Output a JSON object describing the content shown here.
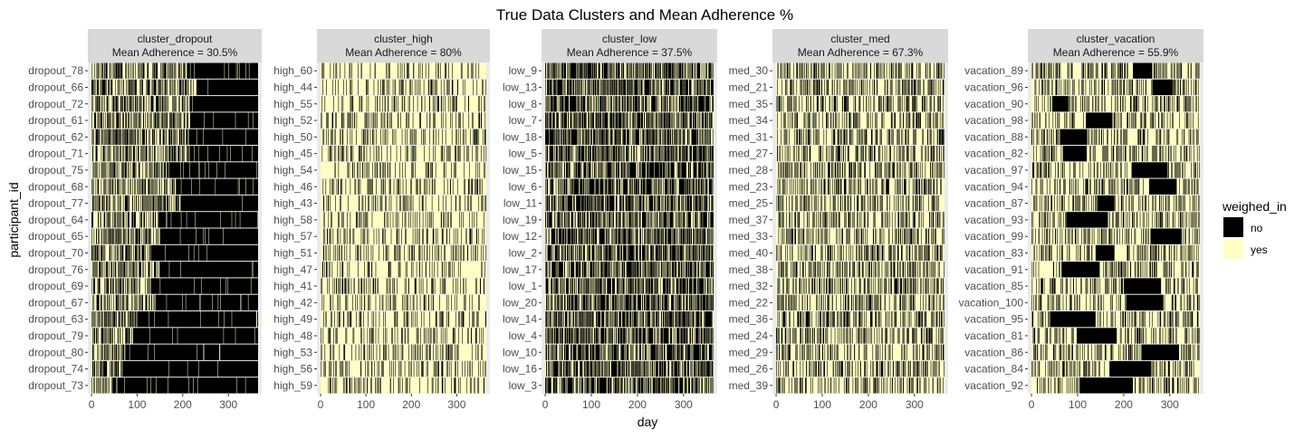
{
  "chart_data": {
    "type": "heatmap",
    "title": "True Data Clusters and Mean Adherence %",
    "xlabel": "day",
    "ylabel": "participant_id",
    "x_ticks": [
      0,
      100,
      200,
      300
    ],
    "xlim": [
      0,
      365
    ],
    "legend": {
      "title": "weighed_in",
      "position": "right",
      "entries": [
        {
          "label": "no",
          "color": "#000000"
        },
        {
          "label": "yes",
          "color": "#ffffc4"
        }
      ]
    },
    "colors": {
      "no": "#000000",
      "yes": "#ffffc4",
      "strip": "#d9d9d9",
      "panel_bg": "#ebebeb",
      "grid": "#ffffff"
    },
    "panels": [
      {
        "cluster": "cluster_dropout",
        "subtitle": "Mean Adherence = 30.5%",
        "mean_adherence": 30.5,
        "participants": [
          "dropout_78",
          "dropout_66",
          "dropout_72",
          "dropout_61",
          "dropout_62",
          "dropout_71",
          "dropout_75",
          "dropout_68",
          "dropout_77",
          "dropout_64",
          "dropout_65",
          "dropout_70",
          "dropout_76",
          "dropout_69",
          "dropout_67",
          "dropout_63",
          "dropout_79",
          "dropout_80",
          "dropout_74",
          "dropout_73"
        ]
      },
      {
        "cluster": "cluster_high",
        "subtitle": "Mean Adherence = 80%",
        "mean_adherence": 80,
        "participants": [
          "high_60",
          "high_44",
          "high_55",
          "high_52",
          "high_50",
          "high_45",
          "high_54",
          "high_46",
          "high_43",
          "high_58",
          "high_57",
          "high_51",
          "high_47",
          "high_41",
          "high_42",
          "high_49",
          "high_48",
          "high_53",
          "high_56",
          "high_59"
        ]
      },
      {
        "cluster": "cluster_low",
        "subtitle": "Mean Adherence = 37.5%",
        "mean_adherence": 37.5,
        "participants": [
          "low_9",
          "low_13",
          "low_8",
          "low_7",
          "low_18",
          "low_5",
          "low_15",
          "low_6",
          "low_11",
          "low_19",
          "low_12",
          "low_2",
          "low_17",
          "low_1",
          "low_20",
          "low_14",
          "low_4",
          "low_10",
          "low_16",
          "low_3"
        ]
      },
      {
        "cluster": "cluster_med",
        "subtitle": "Mean Adherence = 67.3%",
        "mean_adherence": 67.3,
        "participants": [
          "med_30",
          "med_21",
          "med_35",
          "med_34",
          "med_31",
          "med_27",
          "med_28",
          "med_23",
          "med_25",
          "med_37",
          "med_33",
          "med_40",
          "med_38",
          "med_32",
          "med_22",
          "med_36",
          "med_24",
          "med_29",
          "med_26",
          "med_39"
        ]
      },
      {
        "cluster": "cluster_vacation",
        "subtitle": "Mean Adherence = 55.9%",
        "mean_adherence": 55.9,
        "participants": [
          "vacation_89",
          "vacation_96",
          "vacation_90",
          "vacation_98",
          "vacation_88",
          "vacation_82",
          "vacation_97",
          "vacation_94",
          "vacation_87",
          "vacation_93",
          "vacation_99",
          "vacation_83",
          "vacation_91",
          "vacation_85",
          "vacation_100",
          "vacation_95",
          "vacation_81",
          "vacation_86",
          "vacation_84",
          "vacation_92"
        ],
        "no_blocks": [
          [
            220,
            262
          ],
          [
            262,
            307
          ],
          [
            45,
            80
          ],
          [
            118,
            175
          ],
          [
            62,
            120
          ],
          [
            68,
            120
          ],
          [
            217,
            295
          ],
          [
            255,
            315
          ],
          [
            143,
            180
          ],
          [
            75,
            165
          ],
          [
            258,
            325
          ],
          [
            140,
            180
          ],
          [
            65,
            148
          ],
          [
            200,
            280
          ],
          [
            205,
            285
          ],
          [
            40,
            138
          ],
          [
            98,
            185
          ],
          [
            240,
            320
          ],
          [
            170,
            258
          ],
          [
            105,
            220
          ]
        ]
      }
    ],
    "dropout_starts": [
      210,
      230,
      215,
      215,
      215,
      215,
      165,
      185,
      195,
      150,
      150,
      130,
      150,
      130,
      140,
      100,
      95,
      85,
      70,
      60
    ]
  }
}
